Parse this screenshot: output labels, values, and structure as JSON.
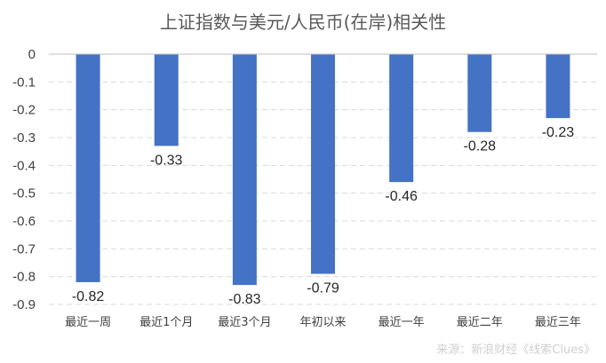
{
  "chart_data": {
    "type": "bar",
    "title": "上证指数与美元/人民币(在岸)相关性",
    "categories": [
      "最近一周",
      "最近1个月",
      "最近3个月",
      "年初以来",
      "最近一年",
      "最近二年",
      "最近三年"
    ],
    "values": [
      -0.82,
      -0.33,
      -0.83,
      -0.79,
      -0.46,
      -0.28,
      -0.23
    ],
    "data_labels": [
      "-0.82",
      "-0.33",
      "-0.83",
      "-0.79",
      "-0.46",
      "-0.28",
      "-0.23"
    ],
    "yticks": [
      0,
      -0.1,
      -0.2,
      -0.3,
      -0.4,
      -0.5,
      -0.6,
      -0.7,
      -0.8,
      -0.9
    ],
    "ytick_labels": [
      "0",
      "-0.1",
      "-0.2",
      "-0.3",
      "-0.4",
      "-0.5",
      "-0.6",
      "-0.7",
      "-0.8",
      "-0.9"
    ],
    "ylim": [
      -0.9,
      0
    ],
    "xlabel": "",
    "ylabel": "",
    "grid": true,
    "bar_color": "#4472c4",
    "source": "来源：新浪财经《线索Clues》"
  }
}
